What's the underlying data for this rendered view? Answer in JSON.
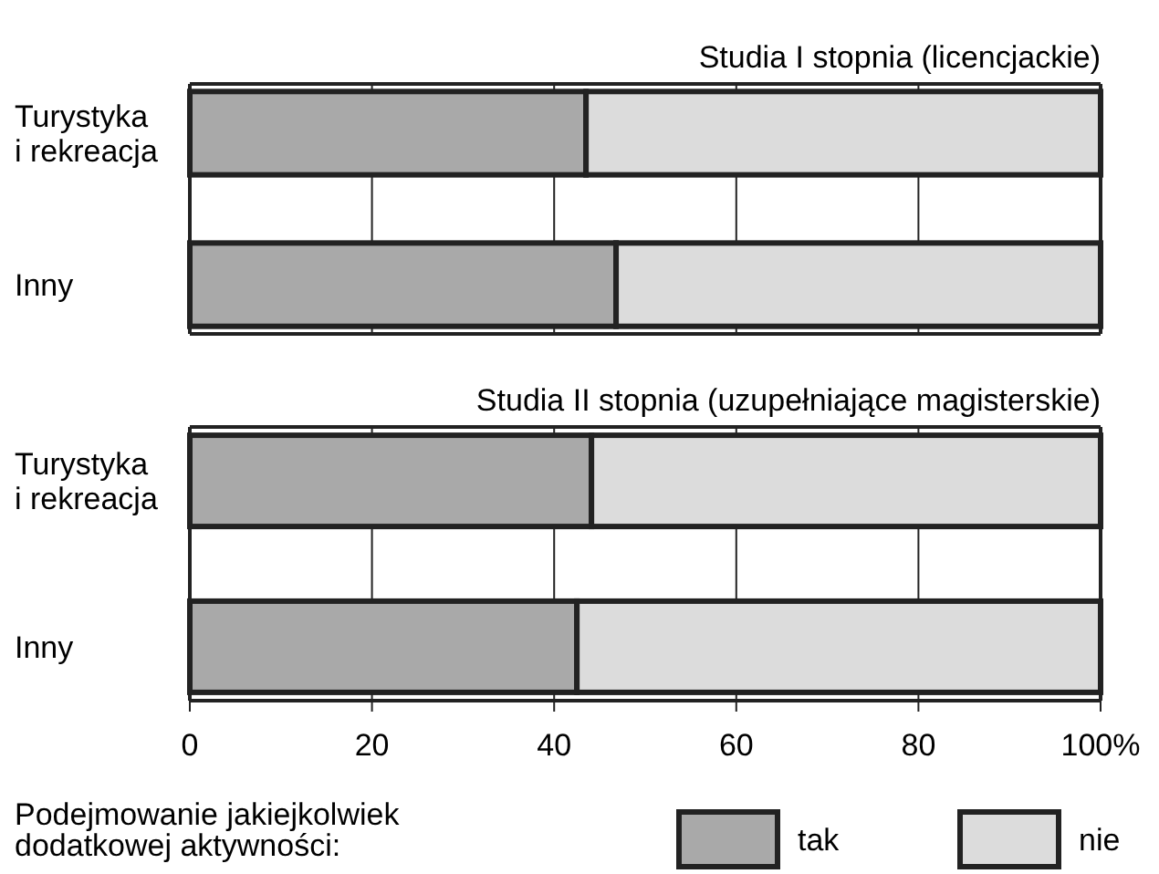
{
  "chart_data": [
    {
      "type": "bar",
      "orientation": "horizontal",
      "stacked": true,
      "title": "Studia I stopnia (licencjackie)",
      "categories": [
        "Turystyka i rekreacja",
        "Inny"
      ],
      "series": [
        {
          "color": "#a9a9a9",
          "values": [
            43.5,
            46.8
          ]
        },
        {
          "color": "#dcdcdc",
          "values": [
            56.5,
            53.2
          ]
        }
      ],
      "xlim": [
        0,
        100
      ],
      "xticks": [
        0,
        20,
        40,
        60,
        80,
        100
      ],
      "grid": "x",
      "tick_labels": "y",
      "legend": false
    },
    {
      "type": "bar",
      "orientation": "horizontal",
      "stacked": true,
      "title": "Studia II stopnia (uzupełniające magisterskie)",
      "categories": [
        "Turystyka i rekreacja",
        "Inny"
      ],
      "series": [
        {
          "name": "tak",
          "color": "#a9a9a9",
          "values": [
            44.1,
            42.5
          ]
        },
        {
          "name": "nie",
          "color": "#dcdcdc",
          "values": [
            55.9,
            57.5
          ]
        }
      ],
      "xlim": [
        0,
        100
      ],
      "xticks": [
        0,
        20,
        40,
        60,
        80,
        {
          "value": 100,
          "label": "100%"
        }
      ],
      "grid": "x",
      "legend": "bottom",
      "legend_title": "Podejmowanie jakiejkolwiek dodatkowej aktywności:"
    }
  ]
}
